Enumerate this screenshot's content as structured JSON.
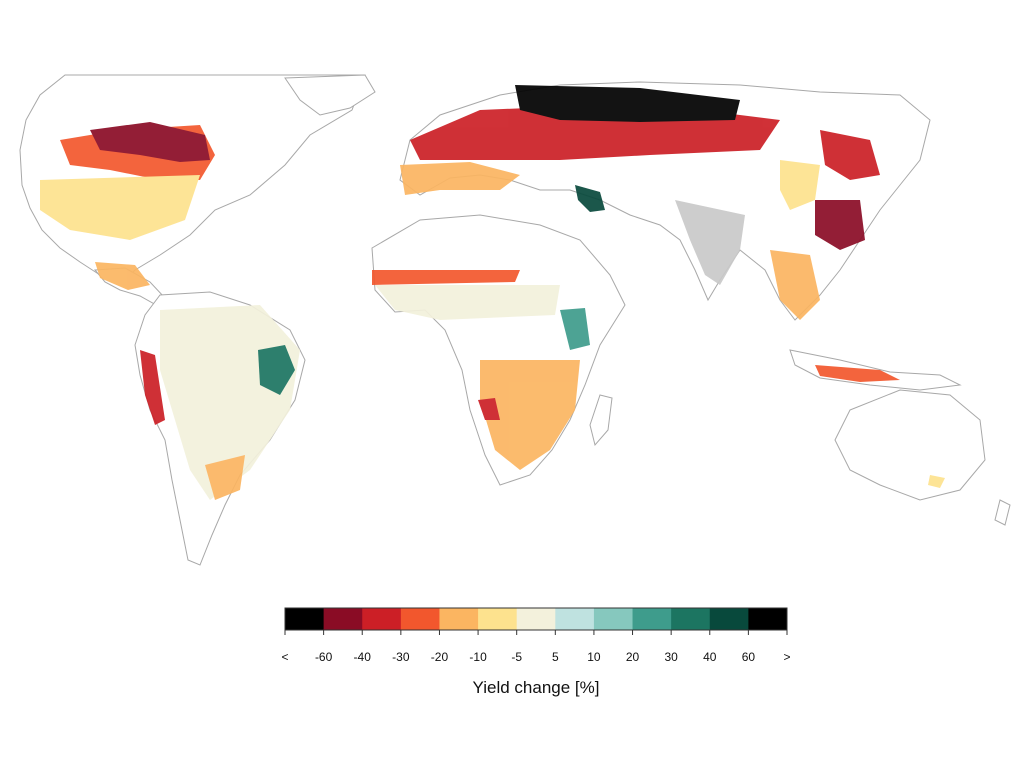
{
  "legend": {
    "title": "Yield change [%]",
    "tick_labels": [
      "<",
      "-60",
      "-40",
      "-30",
      "-20",
      "-10",
      "-5",
      "5",
      "10",
      "20",
      "30",
      "40",
      "60",
      ">"
    ],
    "colors": [
      "#000000",
      "#8a0c25",
      "#cc1f26",
      "#f2572d",
      "#fbb561",
      "#fde28e",
      "#f3f1dc",
      "#bfe2e0",
      "#86c8be",
      "#3e9c8c",
      "#1c7561",
      "#08493c",
      "#000000"
    ]
  },
  "map": {
    "land_color": "#ffffff",
    "border_color": "#a8a8a8",
    "no_data_color": "#c9c9c9"
  }
}
